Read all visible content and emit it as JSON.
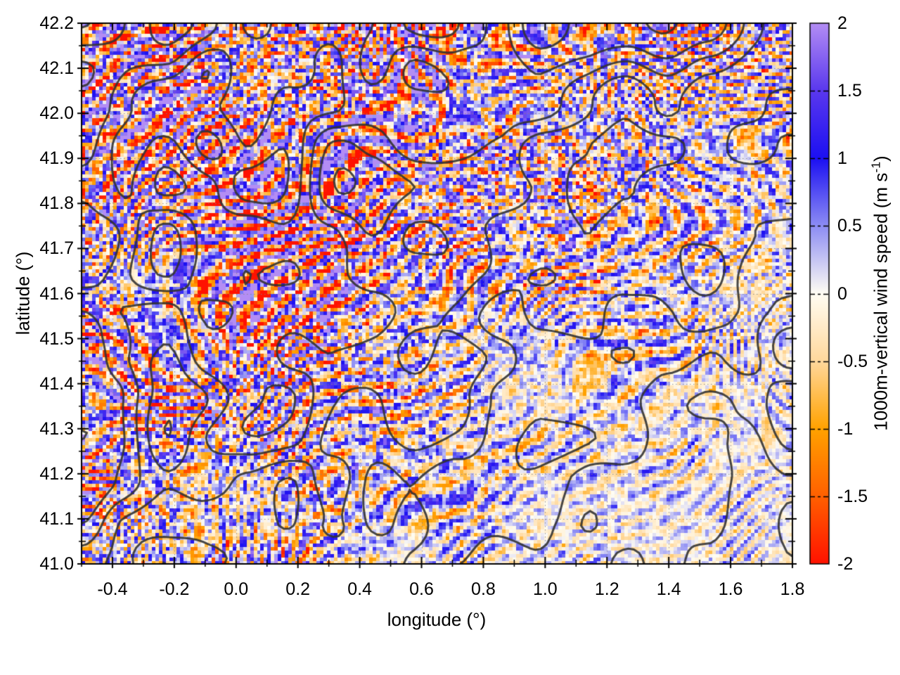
{
  "figure": {
    "background": "#ffffff",
    "border_color": "#000000",
    "grid_color": "#9a9a9a"
  },
  "chart_data": {
    "type": "heatmap",
    "title": "",
    "xlabel": "longitude (°)",
    "ylabel": "latitude (°)",
    "x_range": [
      -0.5,
      1.8
    ],
    "y_range": [
      41.0,
      42.2
    ],
    "x_tick_values": [
      -0.4,
      -0.2,
      0.0,
      0.2,
      0.4,
      0.6,
      0.8,
      1.0,
      1.2,
      1.4,
      1.6,
      1.8
    ],
    "x_tick_labels": [
      "-0.4",
      "-0.2",
      "0.0",
      "0.2",
      "0.4",
      "0.6",
      "0.8",
      "1.0",
      "1.2",
      "1.4",
      "1.6",
      "1.8"
    ],
    "x_minor_step": 0.1,
    "y_tick_values": [
      41.0,
      41.1,
      41.2,
      41.3,
      41.4,
      41.5,
      41.6,
      41.7,
      41.8,
      41.9,
      42.0,
      42.1,
      42.2
    ],
    "y_tick_labels": [
      "41.0",
      "41.1",
      "41.2",
      "41.3",
      "41.4",
      "41.5",
      "41.6",
      "41.7",
      "41.8",
      "41.9",
      "42.0",
      "42.1",
      "42.2"
    ],
    "y_minor_step": 0.05,
    "grid": {
      "show": true,
      "style": "dotted",
      "at": "major-ticks"
    },
    "colorbar": {
      "label": "1000m-vertical wind speed (m s⁻¹)",
      "label_main": "1000m-vertical wind speed (m s",
      "label_sup": "-1",
      "label_close": ")",
      "range": [
        -2,
        2
      ],
      "tick_values": [
        2,
        1.5,
        1,
        0.5,
        0,
        -0.5,
        -1,
        -1.5,
        -2
      ],
      "tick_labels": [
        "2",
        "1.5",
        "1",
        "0.5",
        "0",
        "-0.5",
        "-1",
        "-1.5",
        "-2"
      ],
      "palette": [
        {
          "value": -2.0,
          "color": "#ff1200"
        },
        {
          "value": -1.5,
          "color": "#ff6000"
        },
        {
          "value": -1.0,
          "color": "#ffa200"
        },
        {
          "value": -0.5,
          "color": "#ffd89c"
        },
        {
          "value": 0.0,
          "color": "#fffdf3"
        },
        {
          "value": 0.5,
          "color": "#8d8df4"
        },
        {
          "value": 1.0,
          "color": "#1c10f2"
        },
        {
          "value": 1.5,
          "color": "#5a38ee"
        },
        {
          "value": 2.0,
          "color": "#b38df4"
        }
      ]
    },
    "contours": {
      "color": "#333333",
      "line_width": 3,
      "description": "unlabeled terrain-elevation contour overlay, dense over NW/N mountains, packed parallel lines along SE valley slope"
    },
    "field": {
      "description": "pixelated vertical wind speed: strong saturated noise (about +/-2 m/s, purple/blue/orange/red cells) over the north and west mountainous area; weak smooth wave streaks (about +/-0.4 m/s, pale blue/orange) over the southeast lowlands",
      "cell_size_px": 5
    }
  }
}
